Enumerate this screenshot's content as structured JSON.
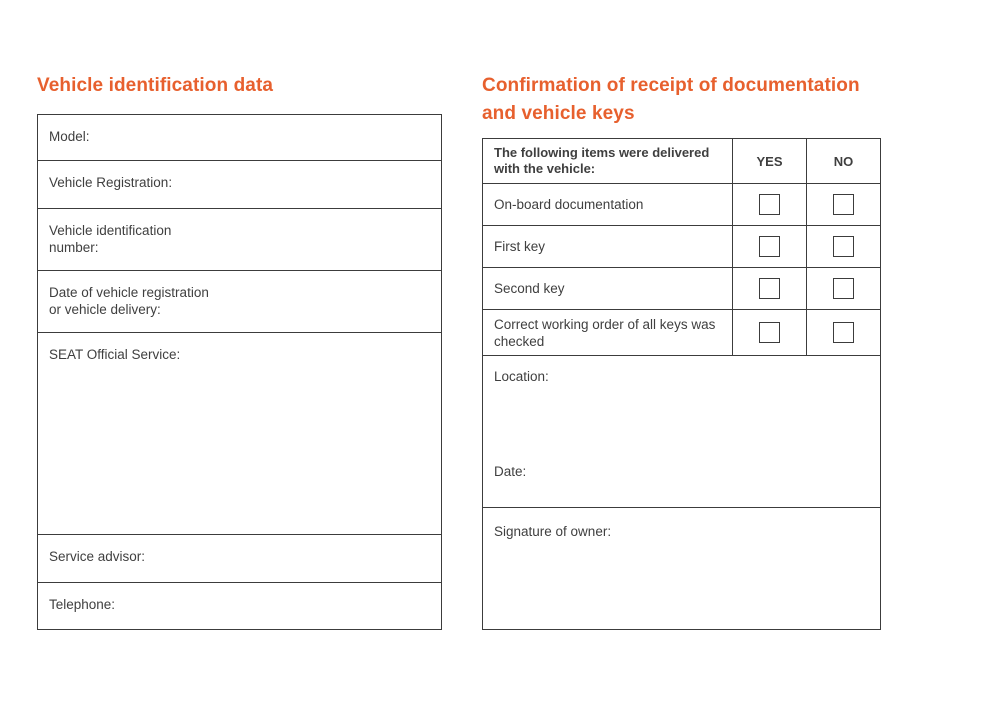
{
  "accent_color": "#e7602e",
  "left_panel": {
    "title": "Vehicle identification data",
    "fields": [
      {
        "label": "Model:"
      },
      {
        "label": "Vehicle Registration:"
      },
      {
        "label": "Vehicle identification\nnumber:"
      },
      {
        "label": "Date of vehicle registration\nor vehicle delivery:"
      },
      {
        "label": "SEAT Official Service:"
      },
      {
        "label": "Service advisor:"
      },
      {
        "label": "Telephone:"
      }
    ]
  },
  "right_panel": {
    "title": "Confirmation of receipt of documentation\nand vehicle keys",
    "checklist": {
      "header_label": "The following items were delivered with the vehicle:",
      "yes_label": "YES",
      "no_label": "NO",
      "items": [
        "On-board documentation",
        "First key",
        "Second key",
        "Correct working order of all keys was checked"
      ]
    },
    "location_label": "Location:",
    "date_label": "Date:",
    "signature_label": "Signature of owner:"
  }
}
